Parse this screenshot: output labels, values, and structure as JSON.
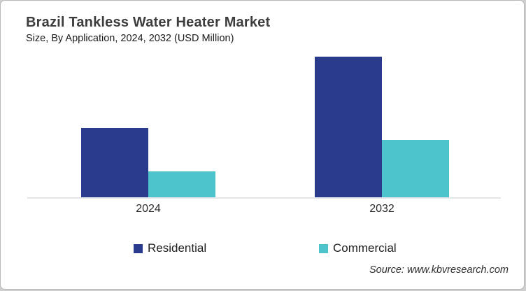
{
  "header": {
    "title": "Brazil Tankless Water Heater Market",
    "subtitle": "Size, By Application, 2024, 2032 (USD Million)"
  },
  "chart_data": {
    "type": "bar",
    "title": "Brazil Tankless Water Heater Market",
    "subtitle": "Size, By Application, 2024, 2032 (USD Million)",
    "categories": [
      "2024",
      "2032"
    ],
    "series": [
      {
        "name": "Residential",
        "color": "#2A3A8C",
        "values": [
          99,
          201
        ]
      },
      {
        "name": "Commercial",
        "color": "#4DC3CB",
        "values": [
          37,
          82
        ]
      }
    ],
    "xlabel": "",
    "ylabel": "",
    "ylim": [
      0,
      220
    ],
    "grid": false,
    "legend_position": "bottom",
    "values_note": "No numeric axis shown in source; values are relative units estimated from bar heights."
  },
  "source": {
    "text": "Source: www.kbvresearch.com"
  }
}
